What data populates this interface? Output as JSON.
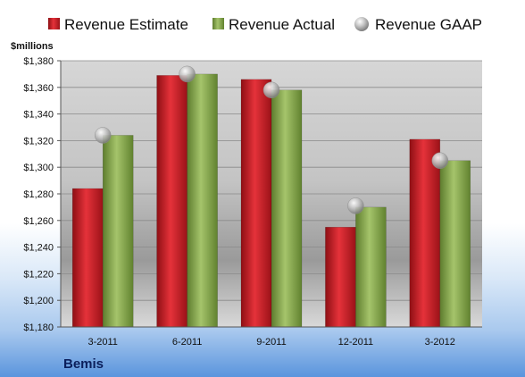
{
  "company": "Bemis",
  "chart_data": {
    "type": "bar",
    "title": "",
    "ylabel": "$millions",
    "xlabel": "",
    "categories": [
      "3-2011",
      "6-2011",
      "9-2011",
      "12-2011",
      "3-2012"
    ],
    "ylim": [
      1180,
      1380
    ],
    "yticks": [
      1180,
      1200,
      1220,
      1240,
      1260,
      1280,
      1300,
      1320,
      1340,
      1360,
      1380
    ],
    "ytick_labels": [
      "$1,180",
      "$1,200",
      "$1,220",
      "$1,240",
      "$1,260",
      "$1,280",
      "$1,300",
      "$1,320",
      "$1,340",
      "$1,360",
      "$1,380"
    ],
    "grid": true,
    "legend_position": "top",
    "series": [
      {
        "name": "Revenue Estimate",
        "kind": "bar",
        "color": "#d42027",
        "values": [
          1284,
          1369,
          1366,
          1255,
          1321
        ]
      },
      {
        "name": "Revenue Actual",
        "kind": "bar",
        "color": "#8cae4f",
        "values": [
          1324,
          1370,
          1358,
          1270,
          1305
        ]
      },
      {
        "name": "Revenue GAAP",
        "kind": "marker",
        "color": "#a6a6a6",
        "values": [
          1324,
          1370,
          1358,
          1271,
          1305
        ]
      }
    ]
  }
}
